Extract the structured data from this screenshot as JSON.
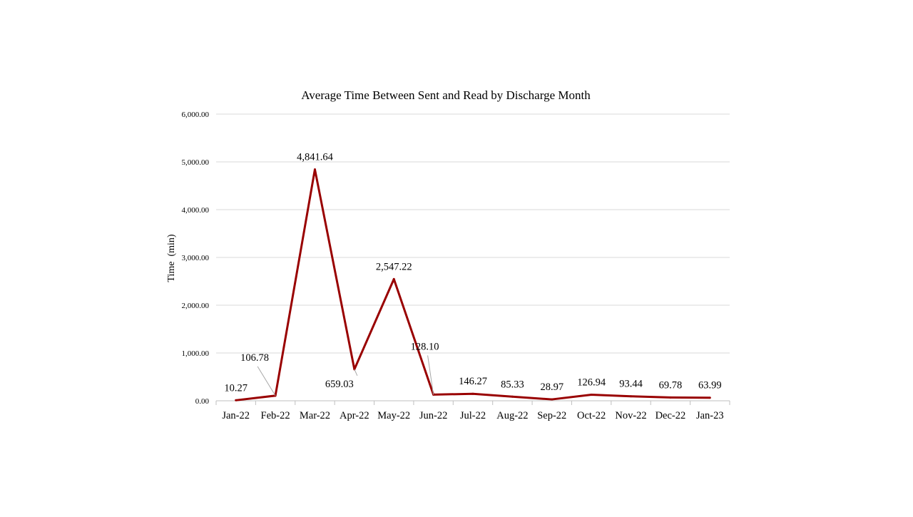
{
  "chart_data": {
    "type": "line",
    "title": "Average Time Between Sent and Read by Discharge Month",
    "xlabel": "",
    "ylabel": "Time  (min)",
    "ylim": [
      0,
      6000
    ],
    "yticks": [
      "0.00",
      "1,000.00",
      "2,000.00",
      "3,000.00",
      "4,000.00",
      "5,000.00",
      "6,000.00"
    ],
    "categories": [
      "Jan-22",
      "Feb-22",
      "Mar-22",
      "Apr-22",
      "May-22",
      "Jun-22",
      "Jul-22",
      "Aug-22",
      "Sep-22",
      "Oct-22",
      "Nov-22",
      "Dec-22",
      "Jan-23"
    ],
    "series": [
      {
        "values": [
          10.27,
          106.78,
          4841.64,
          659.03,
          2547.22,
          128.1,
          146.27,
          85.33,
          28.97,
          126.94,
          93.44,
          69.78,
          63.99
        ],
        "labels": [
          "10.27",
          "106.78",
          "4,841.64",
          "659.03",
          "2,547.22",
          "128.10",
          "146.27",
          "85.33",
          "28.97",
          "126.94",
          "93.44",
          "69.78",
          "63.99"
        ]
      }
    ],
    "grid": true,
    "legend": "none",
    "line_color": "#990000"
  }
}
